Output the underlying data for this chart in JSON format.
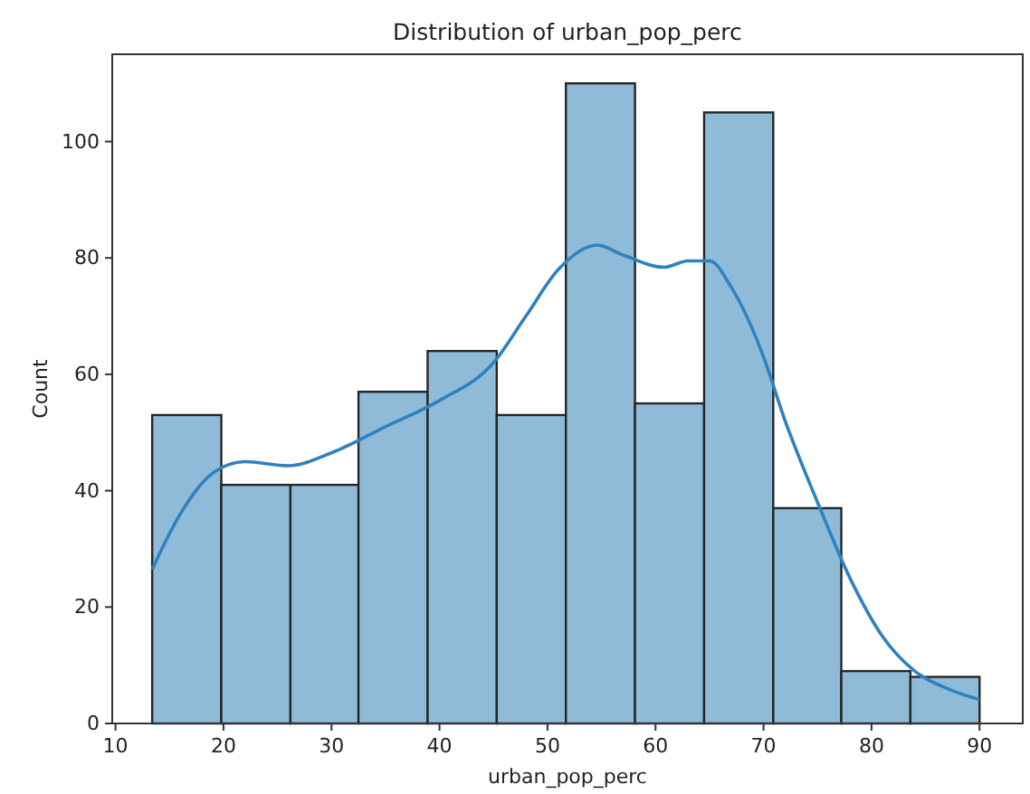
{
  "chart_data": {
    "type": "histogram",
    "title": "Distribution of urban_pop_perc",
    "xlabel": "urban_pop_perc",
    "ylabel": "Count",
    "bins": [
      13.4,
      19.8,
      26.2,
      32.5,
      38.9,
      45.3,
      51.7,
      58.1,
      64.5,
      70.9,
      77.2,
      83.6,
      90.0
    ],
    "series": [
      {
        "color": "#8fbbd9",
        "values": [
          53,
          41,
          41,
          57,
          64,
          53,
          110,
          55,
          105,
          37,
          9,
          8
        ]
      },
      {
        "type": "line",
        "color": "#2f82bf",
        "x": [
          13.4,
          16,
          19,
          22,
          26,
          30,
          35,
          40,
          45,
          48,
          51,
          54.6,
          57,
          60.8,
          63,
          65,
          67,
          70,
          72,
          75,
          78,
          81,
          84,
          87,
          90
        ],
        "values": [
          26.5,
          36,
          43,
          45,
          44.3,
          46.5,
          51,
          55.5,
          62,
          70,
          78,
          82.2,
          80.5,
          78.4,
          79.5,
          79.5,
          75,
          63,
          52,
          38,
          25,
          15,
          9,
          6,
          4.1
        ]
      }
    ],
    "xlim": [
      9.7,
      94
    ],
    "ylim": [
      0,
      115
    ],
    "xticks": [
      10,
      20,
      30,
      40,
      50,
      60,
      70,
      80,
      90
    ],
    "yticks": [
      0,
      20,
      40,
      60,
      80,
      100
    ],
    "grid": false
  }
}
